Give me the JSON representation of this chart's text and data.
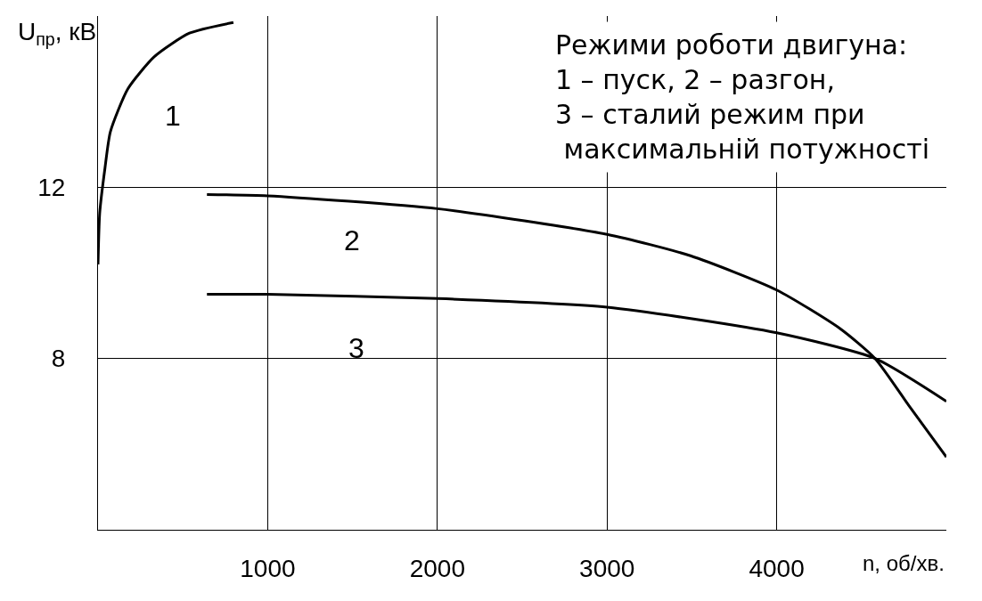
{
  "chart_data": {
    "type": "line",
    "xlabel": "n, об/хв.",
    "ylabel": "U$_{пр}$, кВ",
    "xlim": [
      0,
      5000
    ],
    "ylim": [
      4,
      16
    ],
    "xticks": [
      1000,
      2000,
      3000,
      4000
    ],
    "yticks": [
      8,
      12
    ],
    "grid": true,
    "line_style": "solid",
    "marker": "none",
    "legend": false,
    "series": [
      {
        "name": "1",
        "color": "#000000",
        "x": [
          0,
          10,
          41,
          73,
          176,
          332,
          539,
          798
        ],
        "values": [
          10.2,
          11.4,
          12.45,
          13.3,
          14.3,
          15.05,
          15.6,
          15.85
        ]
      },
      {
        "name": "2",
        "color": "#000000",
        "x": [
          642,
          1000,
          2000,
          3000,
          3492,
          4000,
          4373,
          4580,
          4788,
          5000
        ],
        "values": [
          11.83,
          11.8,
          11.5,
          10.9,
          10.4,
          9.6,
          8.7,
          8.0,
          6.85,
          5.7
        ]
      },
      {
        "name": "3",
        "color": "#000000",
        "x": [
          642,
          1000,
          2000,
          3000,
          4000,
          4580,
          5000
        ],
        "values": [
          9.5,
          9.5,
          9.4,
          9.2,
          8.6,
          8.0,
          7.0
        ]
      }
    ],
    "annotations": [
      "Режими роботи двигуна:\n1 – пуск, 2 – разгон,\n3 – сталий режим при\n максимальній потужності"
    ]
  }
}
